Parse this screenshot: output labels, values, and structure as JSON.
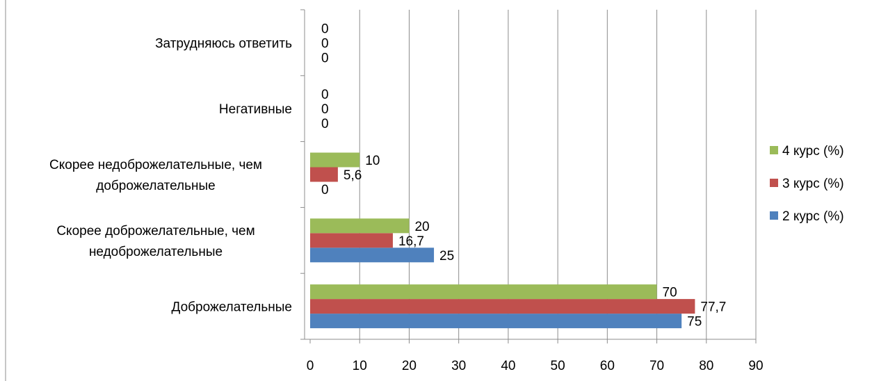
{
  "chart_data": {
    "type": "bar",
    "orientation": "horizontal",
    "title": "",
    "xlabel": "",
    "ylabel": "",
    "xlim": [
      0,
      90
    ],
    "x_ticks": [
      "0",
      "10",
      "20",
      "30",
      "40",
      "50",
      "60",
      "70",
      "80",
      "90"
    ],
    "grid": true,
    "legend_position": "right",
    "categories": [
      [
        "Доброжелательные"
      ],
      [
        "Скорее доброжелательные, чем",
        "недоброжелательные"
      ],
      [
        "Скорее недоброжелательные, чем",
        "доброжелательные"
      ],
      [
        "Негативные"
      ],
      [
        "Затрудняюсь ответить"
      ]
    ],
    "series": [
      {
        "name": "2 курс (%)",
        "color": "#4F81BD",
        "values": [
          75,
          25,
          0,
          0,
          0
        ],
        "labels": [
          "75",
          "25",
          "0",
          "0",
          "0"
        ]
      },
      {
        "name": "3 курс (%)",
        "color": "#C0504D",
        "values": [
          77.7,
          16.7,
          5.6,
          0,
          0
        ],
        "labels": [
          "77,7",
          "16,7",
          "5,6",
          "0",
          "0"
        ]
      },
      {
        "name": "4 курс (%)",
        "color": "#9BBB59",
        "values": [
          70,
          20,
          10,
          0,
          0
        ],
        "labels": [
          "70",
          "20",
          "10",
          "0",
          "0"
        ]
      }
    ],
    "legend_order": [
      "4 курс (%)",
      "3 курс (%)",
      "2 курс (%)"
    ]
  }
}
